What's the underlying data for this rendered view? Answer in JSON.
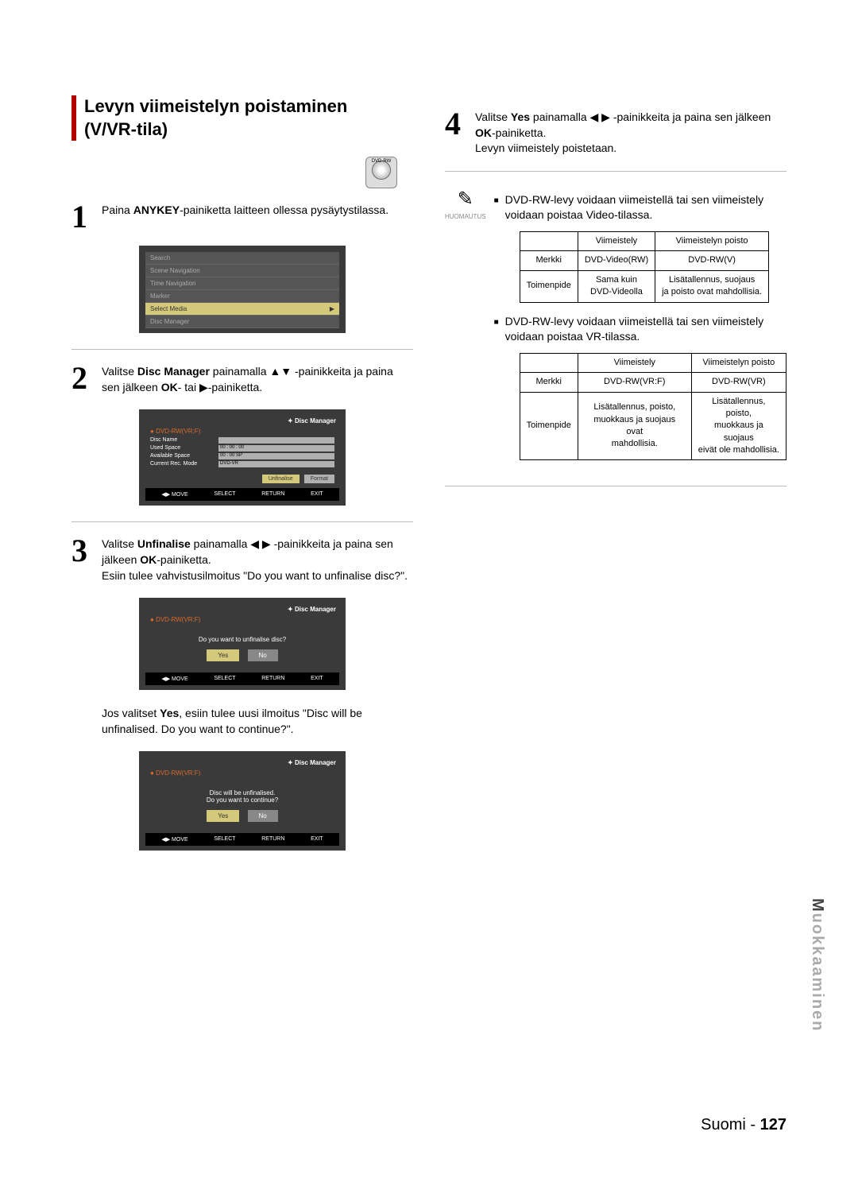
{
  "title": "Levyn viimeistelyn poistaminen\n(V/VR-tila)",
  "dvd_label": "DVD-RW",
  "steps": {
    "s1": {
      "num": "1",
      "text_a": "Paina ",
      "bold_a": "ANYKEY",
      "text_b": "-painiketta laitteen ollessa pysäytystilassa."
    },
    "s2": {
      "num": "2",
      "text_a": "Valitse ",
      "bold_a": "Disc Manager",
      "text_b": " painamalla ▲▼ -painikkeita ja paina sen jälkeen ",
      "bold_b": "OK",
      "text_c": "- tai ▶-painiketta."
    },
    "s3": {
      "num": "3",
      "text_a": "Valitse ",
      "bold_a": "Unfinalise",
      "text_b": " painamalla ◀ ▶ -painikkeita ja paina sen jälkeen ",
      "bold_b": "OK",
      "text_c": "-painiketta.",
      "extra": "Esiin tulee vahvistusilmoitus \"Do you want to unfinalise disc?\"."
    },
    "s3b": {
      "text_a": "Jos valitset ",
      "bold_a": "Yes",
      "text_b": ", esiin tulee uusi ilmoitus \"Disc will be unfinalised. Do you want to continue?\"."
    },
    "s4": {
      "num": "4",
      "text_a": "Valitse ",
      "bold_a": "Yes",
      "text_b": " painamalla ◀ ▶ -painikkeita ja paina sen jälkeen ",
      "bold_b": "OK",
      "text_c": "-painiketta.",
      "extra": "Levyn viimeistely poistetaan."
    }
  },
  "menu1": {
    "items": [
      "Search",
      "Scene Navigation",
      "Time Navigation",
      "Marker",
      "Select Media",
      "Disc Manager"
    ],
    "selected_index": 4
  },
  "dm_screen": {
    "header": "Disc Manager",
    "sub": "DVD-RW(VR:F)",
    "rows": [
      {
        "label": "Disc Name",
        "val": ""
      },
      {
        "label": "Used Space",
        "val": "00 : 00 : 00"
      },
      {
        "label": "Available Space",
        "val": "00 : 00 SP"
      },
      {
        "label": "Current Rec. Mode",
        "val": "DVD-VR"
      }
    ],
    "btn1": "Unfinalise",
    "btn2": "Format",
    "nav": [
      "◀▶ MOVE",
      "SELECT",
      "RETURN",
      "EXIT"
    ]
  },
  "confirm1": {
    "header": "Disc Manager",
    "sub": "DVD-RW(VR:F)",
    "msg": "Do you want to unfinalise disc?",
    "yes": "Yes",
    "no": "No"
  },
  "confirm2": {
    "header": "Disc Manager",
    "sub": "DVD-RW(VR:F)",
    "msg1": "Disc will be unfinalised.",
    "msg2": "Do you want to continue?",
    "yes": "Yes",
    "no": "No"
  },
  "note_label": "HUOMAUTUS",
  "note1": "DVD-RW-levy voidaan viimeistellä tai sen viimeistely voidaan poistaa Video-tilassa.",
  "note2": "DVD-RW-levy voidaan viimeistellä tai sen viimeistely voidaan poistaa VR-tilassa.",
  "table1": {
    "h1": "",
    "h2": "Viimeistely",
    "h3": "Viimeistelyn poisto",
    "r1c1": "Merkki",
    "r1c2": "DVD-Video(RW)",
    "r1c3": "DVD-RW(V)",
    "r2c1": "Toimenpide",
    "r2c2": "Sama kuin\nDVD-Videolla",
    "r2c3": "Lisätallennus, suojaus\nja poisto ovat mahdollisia."
  },
  "table2": {
    "h1": "",
    "h2": "Viimeistely",
    "h3": "Viimeistelyn poisto",
    "r1c1": "Merkki",
    "r1c2": "DVD-RW(VR:F)",
    "r1c3": "DVD-RW(VR)",
    "r2c1": "Toimenpide",
    "r2c2": "Lisätallennus, poisto,\nmuokkaus ja suojaus ovat\nmahdollisia.",
    "r2c3": "Lisätallennus, poisto,\nmuokkaus ja suojaus\neivät ole mahdollisia."
  },
  "side_tab_dark": "M",
  "side_tab_light": "uokkaaminen",
  "footer_lang": "Suomi - ",
  "footer_page": "127"
}
